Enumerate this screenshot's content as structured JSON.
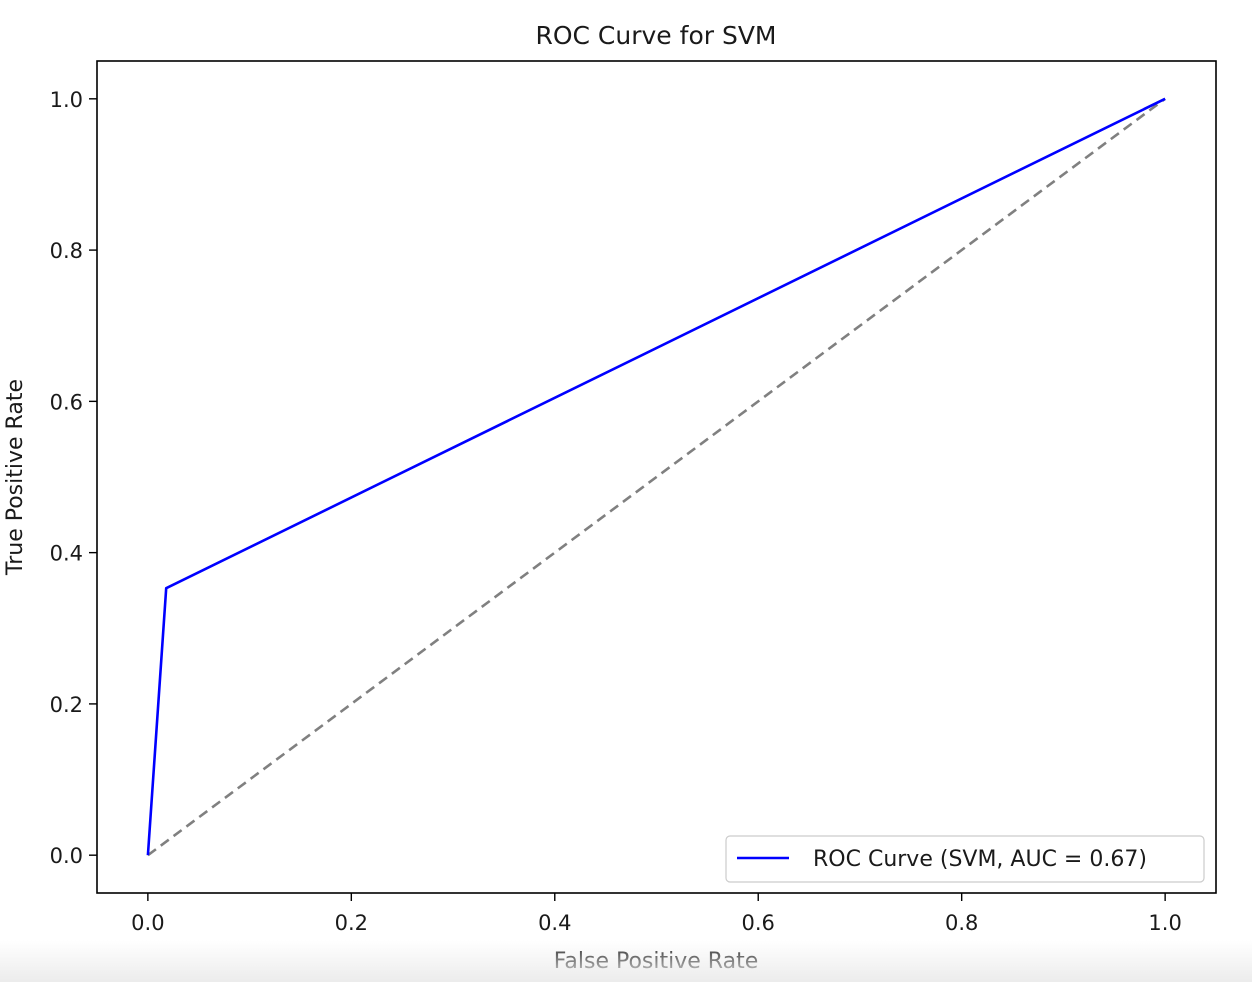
{
  "chart_data": {
    "type": "line",
    "title": "ROC Curve for SVM",
    "xlabel": "False Positive Rate",
    "ylabel": "True Positive Rate",
    "xlim": [
      -0.05,
      1.05
    ],
    "ylim": [
      -0.05,
      1.05
    ],
    "x_ticks": [
      0.0,
      0.2,
      0.4,
      0.6,
      0.8,
      1.0
    ],
    "x_tick_labels": [
      "0.0",
      "0.2",
      "0.4",
      "0.6",
      "0.8",
      "1.0"
    ],
    "y_ticks": [
      0.0,
      0.2,
      0.4,
      0.6,
      0.8,
      1.0
    ],
    "y_tick_labels": [
      "0.0",
      "0.2",
      "0.4",
      "0.6",
      "0.8",
      "1.0"
    ],
    "grid": false,
    "legend_position": "bottom-right",
    "series": [
      {
        "name": "ROC Curve (SVM, AUC = 0.67)",
        "color": "#0000ff",
        "style": "solid",
        "x": [
          0.0,
          0.018,
          1.0
        ],
        "y": [
          0.0,
          0.353,
          1.0
        ]
      },
      {
        "color": "#808080",
        "style": "dashed",
        "x": [
          0.0,
          1.0
        ],
        "y": [
          0.0,
          1.0
        ]
      }
    ]
  }
}
